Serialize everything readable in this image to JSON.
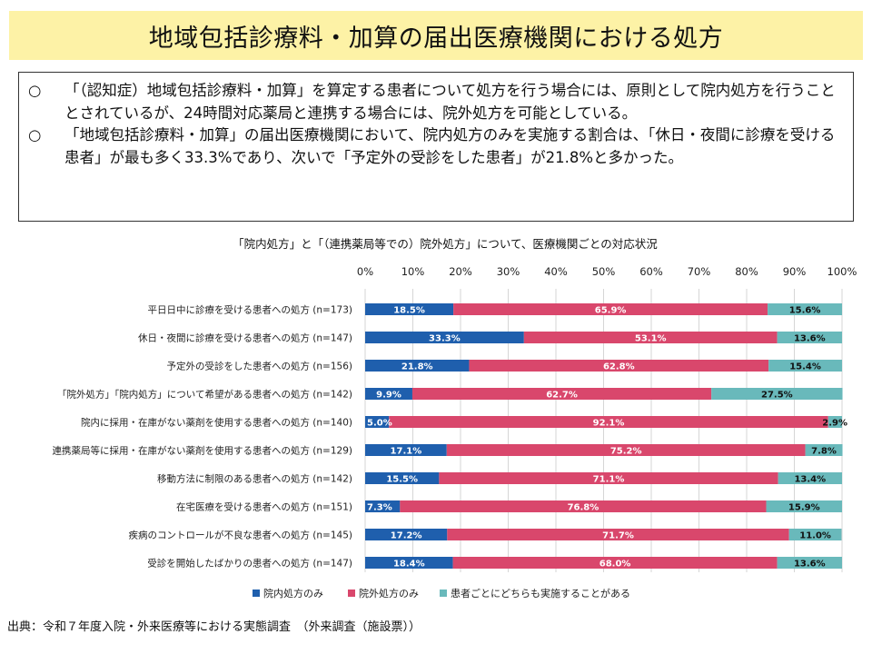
{
  "header": {
    "title": "地域包括診療料・加算の届出医療機関における処方"
  },
  "summary": {
    "bullets": [
      {
        "mark": "○",
        "text": "「（認知症）地域包括診療料・加算」を算定する患者について処方を行う場合には、原則として院内処方を行うこととされているが、24時間対応薬局と連携する場合には、院外処方を可能としている。"
      },
      {
        "mark": "○",
        "text": "「地域包括診療料・加算」の届出医療機関において、院内処方のみを実施する割合は、「休日・夜間に診療を受ける患者」が最も多く33.3%であり、次いで「予定外の受診をした患者」が21.8%と多かった。"
      }
    ]
  },
  "colors": {
    "series": [
      "#1f5fad",
      "#d9476c",
      "#69b9bb"
    ],
    "grid": "#d6d6d6",
    "banner": "#fdf2a6"
  },
  "chart_data": {
    "type": "bar",
    "orientation": "horizontal",
    "stacked": true,
    "title": "「院内処方」と「（連携薬局等での）院外処方」について、医療機関ごとの対応状況",
    "x_ticks": [
      "0%",
      "10%",
      "20%",
      "30%",
      "40%",
      "50%",
      "60%",
      "70%",
      "80%",
      "90%",
      "100%"
    ],
    "xlim": [
      0,
      100
    ],
    "grid": true,
    "legend_position": "bottom",
    "categories": [
      "平日日中に診療を受ける患者への処方 (n=173)",
      "休日・夜間に診療を受ける患者への処方 (n=147)",
      "予定外の受診をした患者への処方 (n=156)",
      "「院外処方」「院内処方」について希望がある患者への処方 (n=142)",
      "院内に採用・在庫がない薬剤を使用する患者への処方 (n=140)",
      "連携薬局等に採用・在庫がない薬剤を使用する患者への処方 (n=129)",
      "移動方法に制限のある患者への処方 (n=142)",
      "在宅医療を受ける患者への処方 (n=151)",
      "疾病のコントロールが不良な患者への処方 (n=145)",
      "受診を開始したばかりの患者への処方 (n=147)"
    ],
    "series": [
      {
        "name": "院内処方のみ",
        "values": [
          18.5,
          33.3,
          21.8,
          9.9,
          5.0,
          17.1,
          15.5,
          7.3,
          17.2,
          18.4
        ],
        "labels": [
          "18.5%",
          "33.3%",
          "21.8%",
          "9.9%",
          "5.0%",
          "17.1%",
          "15.5%",
          "7.3%",
          "17.2%",
          "18.4%"
        ]
      },
      {
        "name": "院外処方のみ",
        "values": [
          65.9,
          53.1,
          62.8,
          62.7,
          92.1,
          75.2,
          71.1,
          76.8,
          71.7,
          68.0
        ],
        "labels": [
          "65.9%",
          "53.1%",
          "62.8%",
          "62.7%",
          "92.1%",
          "75.2%",
          "71.1%",
          "76.8%",
          "71.7%",
          "68.0%"
        ]
      },
      {
        "name": "患者ごとにどちらも実施することがある",
        "values": [
          15.6,
          13.6,
          15.4,
          27.5,
          2.9,
          7.8,
          13.4,
          15.9,
          11.0,
          13.6
        ],
        "labels": [
          "15.6%",
          "13.6%",
          "15.4%",
          "27.5%",
          "2.9%",
          "7.8%",
          "13.4%",
          "15.9%",
          "11.0%",
          "13.6%"
        ]
      }
    ]
  },
  "footer": {
    "source": "出典：令和７年度入院・外来医療等における実態調査　（外来調査（施設票））"
  }
}
